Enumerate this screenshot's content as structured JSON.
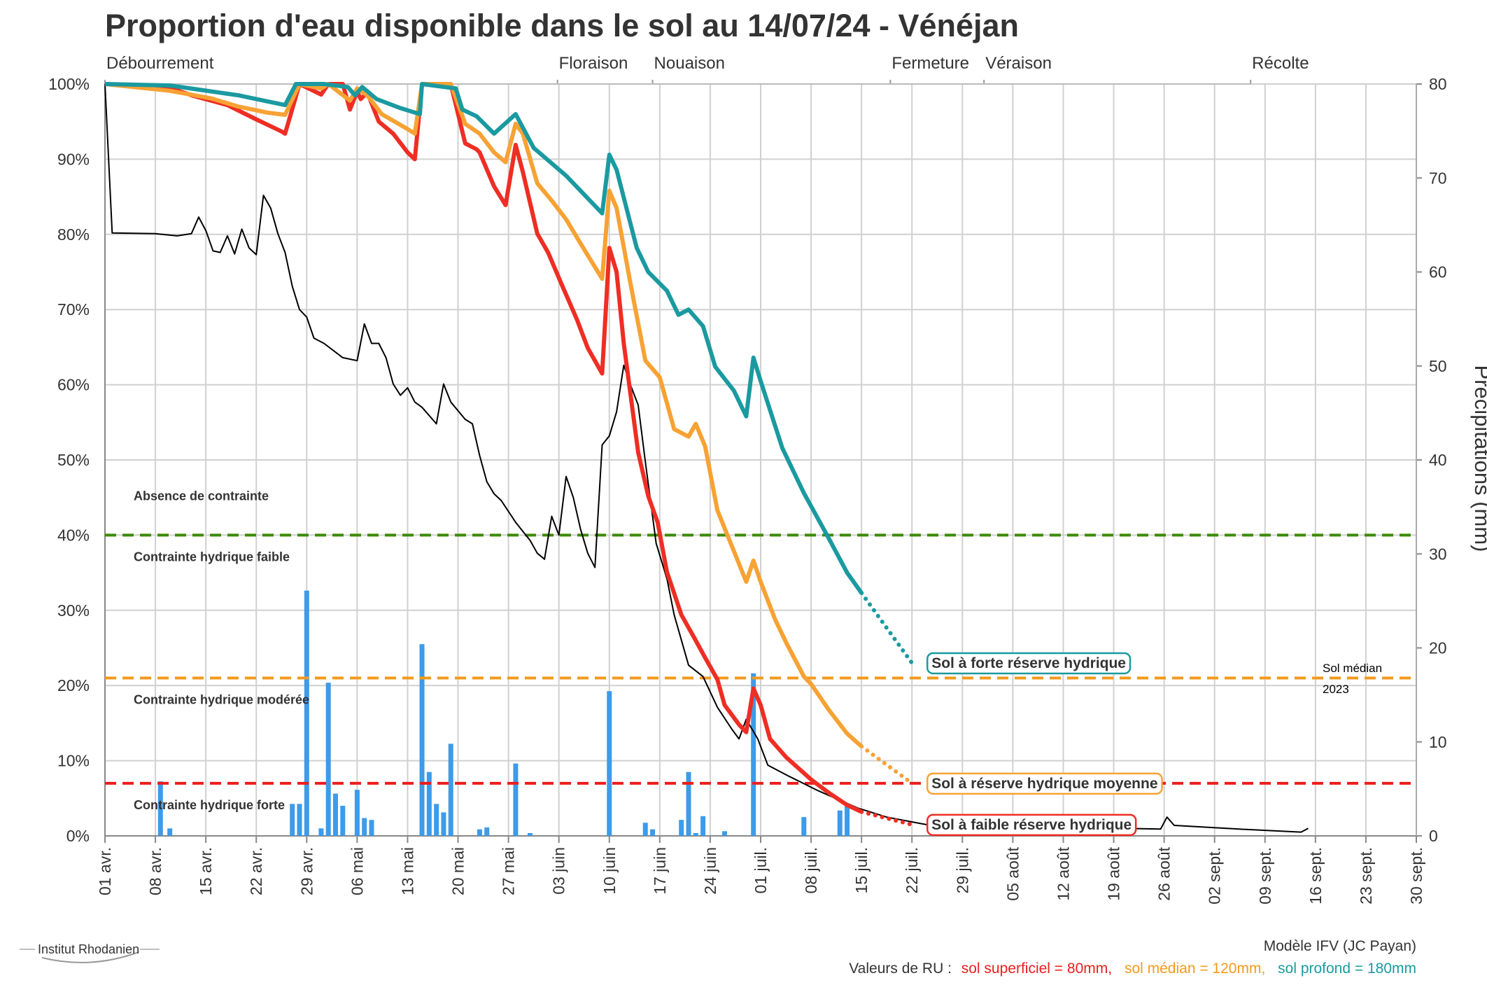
{
  "chart_data": {
    "type": "line",
    "title": "Proportion d'eau disponible dans le sol au 14/07/24 - Vénéjan",
    "xlim": [
      0,
      182
    ],
    "xticks": [
      {
        "value": 0,
        "label": "01 avr."
      },
      {
        "value": 7,
        "label": "08 avr."
      },
      {
        "value": 14,
        "label": "15 avr."
      },
      {
        "value": 21,
        "label": "22 avr."
      },
      {
        "value": 28,
        "label": "29 avr."
      },
      {
        "value": 35,
        "label": "06 mai"
      },
      {
        "value": 42,
        "label": "13 mai"
      },
      {
        "value": 49,
        "label": "20 mai"
      },
      {
        "value": 56,
        "label": "27 mai"
      },
      {
        "value": 63,
        "label": "03 juin"
      },
      {
        "value": 70,
        "label": "10 juin"
      },
      {
        "value": 77,
        "label": "17 juin"
      },
      {
        "value": 84,
        "label": "24 juin"
      },
      {
        "value": 91,
        "label": "01 juil."
      },
      {
        "value": 98,
        "label": "08 juil."
      },
      {
        "value": 105,
        "label": "15 juil."
      },
      {
        "value": 112,
        "label": "22 juil."
      },
      {
        "value": 119,
        "label": "29 juil."
      },
      {
        "value": 126,
        "label": "05 août"
      },
      {
        "value": 133,
        "label": "12 août"
      },
      {
        "value": 140,
        "label": "19 août"
      },
      {
        "value": 147,
        "label": "26 août"
      },
      {
        "value": 154,
        "label": "02 sept."
      },
      {
        "value": 161,
        "label": "09 sept."
      },
      {
        "value": 168,
        "label": "16 sept."
      },
      {
        "value": 175,
        "label": "23 sept."
      },
      {
        "value": 182,
        "label": "30 sept."
      }
    ],
    "ylim": [
      0,
      100
    ],
    "yticks": [
      {
        "value": 0,
        "label": "0%"
      },
      {
        "value": 10,
        "label": "10%"
      },
      {
        "value": 20,
        "label": "20%"
      },
      {
        "value": 30,
        "label": "30%"
      },
      {
        "value": 40,
        "label": "40%"
      },
      {
        "value": 50,
        "label": "50%"
      },
      {
        "value": 60,
        "label": "60%"
      },
      {
        "value": 70,
        "label": "70%"
      },
      {
        "value": 80,
        "label": "80%"
      },
      {
        "value": 90,
        "label": "90%"
      },
      {
        "value": 100,
        "label": "100%"
      }
    ],
    "y2lim": [
      0,
      80
    ],
    "y2ticks": [
      0,
      10,
      20,
      30,
      40,
      50,
      60,
      70,
      80
    ],
    "y2_label": "Précipitations (mm)",
    "grid": true,
    "phases": [
      {
        "label": "Débourrement",
        "x": 0
      },
      {
        "label": "Floraison",
        "x": 62.8
      },
      {
        "label": "Nouaison",
        "x": 76
      },
      {
        "label": "Fermeture",
        "x": 109
      },
      {
        "label": "Véraison",
        "x": 122
      },
      {
        "label": "Récolte",
        "x": 159
      }
    ],
    "above_label": {
      "text": "Absence de contrainte",
      "color": "#1a9aa0"
    },
    "thresholds": [
      {
        "value": 40,
        "color": "#3c8a00",
        "label": "Contrainte hydrique faible"
      },
      {
        "value": 21,
        "color": "#f39a1c",
        "label": "Contrainte hydrique modérée"
      },
      {
        "value": 7,
        "color": "#ee1c1c",
        "label": "Contrainte hydrique forte"
      }
    ],
    "series": [
      {
        "name": "Sol à faible réserve hydrique",
        "color": "#ee2e24",
        "x": [
          0,
          9,
          12,
          17,
          21,
          24.5,
          25,
          27,
          30,
          31,
          33,
          34,
          35,
          35.5,
          36.4,
          38,
          40,
          42,
          43,
          44,
          48,
          50,
          51.6,
          52,
          54,
          55.6,
          57,
          58,
          60,
          61.5,
          63.5,
          65.5,
          67,
          69,
          70,
          71,
          72,
          74,
          75.4,
          76.7,
          78,
          80,
          81.7,
          83.3,
          85,
          86,
          88,
          89,
          90,
          91,
          92.3,
          94.6,
          98,
          100.5,
          103,
          105
        ],
        "values": [
          100,
          99.5,
          98.5,
          97.2,
          95.3,
          93.7,
          93.4,
          100,
          98.6,
          100,
          100,
          96.6,
          99,
          98,
          98.9,
          95,
          93.4,
          90.9,
          90,
          100,
          100,
          92.1,
          91.3,
          90.9,
          86.4,
          83.9,
          91.9,
          88.3,
          80.1,
          77.6,
          73.1,
          68.7,
          64.9,
          61.5,
          78.2,
          75,
          65.5,
          51,
          45.2,
          41.7,
          35.1,
          29.4,
          26.5,
          23.7,
          20.8,
          17.4,
          14.8,
          13.8,
          19.6,
          17.4,
          12.9,
          10.4,
          7.5,
          5.7,
          4.1,
          3.2
        ],
        "forecast": {
          "x": [
            105,
            112
          ],
          "values": [
            3.2,
            1.5
          ]
        }
      },
      {
        "name": "Sol à réserve hydrique moyenne",
        "color": "#f7a234",
        "x": [
          0,
          9,
          14.7,
          18.5,
          22.5,
          25,
          27,
          30,
          31,
          34,
          35,
          36.4,
          38.4,
          42,
          43,
          44,
          48,
          50,
          52,
          54,
          55.6,
          57,
          58,
          60,
          62,
          64,
          66,
          69,
          70,
          71,
          73,
          75,
          77,
          79,
          81,
          82,
          83.3,
          85,
          86.6,
          89,
          90,
          91,
          93,
          94.6,
          97,
          98,
          100.5,
          103,
          105
        ],
        "values": [
          100,
          99.1,
          98.1,
          97,
          96.2,
          95.9,
          100,
          99.4,
          100,
          97.8,
          99.4,
          98.5,
          96,
          94,
          93.4,
          100,
          100,
          94.7,
          93.4,
          90.9,
          89.6,
          94.7,
          93.4,
          86.8,
          84.5,
          82,
          78.8,
          74.1,
          85.8,
          83.5,
          73.1,
          63.2,
          61,
          54.1,
          53.1,
          54.8,
          51.8,
          43.3,
          39.5,
          33.8,
          36.6,
          33.8,
          28.8,
          25.6,
          21.2,
          20.2,
          16.7,
          13.6,
          11.9
        ],
        "forecast": {
          "x": [
            105,
            112
          ],
          "values": [
            11.9,
            7
          ]
        }
      },
      {
        "name": "Sol à forte réserve hydrique",
        "color": "#1a9aa0",
        "x": [
          0,
          9,
          18.5,
          25,
          26.5,
          30.4,
          33.7,
          34.7,
          35.7,
          37.7,
          41,
          43.7,
          44,
          48.7,
          49.6,
          51.6,
          54,
          57,
          59.5,
          64,
          69,
          70,
          71,
          73.8,
          75.4,
          78,
          79.6,
          81,
          83,
          84.7,
          87.3,
          89,
          90,
          91,
          94,
          97,
          100.5,
          103,
          105
        ],
        "values": [
          100,
          99.8,
          98.5,
          97.2,
          100,
          100,
          99.6,
          98.5,
          99.6,
          98,
          96.8,
          96,
          100,
          99.4,
          96.6,
          95.7,
          93.4,
          96,
          91.5,
          87.8,
          82.8,
          90.6,
          88.6,
          78.2,
          75,
          72.5,
          69.3,
          70,
          67.8,
          62.4,
          59.2,
          55.8,
          63.6,
          60.5,
          51.6,
          45.6,
          39.5,
          35,
          32.3
        ],
        "forecast": {
          "x": [
            105,
            112
          ],
          "values": [
            32.3,
            23
          ]
        }
      },
      {
        "name": "Sol médian 2023",
        "color": "#000000",
        "x": [
          0,
          1,
          7,
          10,
          12,
          13,
          14,
          15,
          16,
          17,
          18,
          19,
          20,
          21,
          22,
          23,
          24,
          25,
          26,
          27,
          28,
          29,
          30.4,
          33,
          35,
          36,
          37,
          38,
          39,
          40,
          41,
          42,
          43,
          44,
          46,
          47,
          48,
          50,
          51,
          52,
          53,
          54,
          55,
          57,
          59,
          60,
          61,
          62,
          63,
          64,
          65,
          66,
          67,
          68,
          69,
          70,
          71,
          72,
          73,
          74,
          75,
          76.5,
          78,
          79,
          81,
          83,
          85,
          87,
          88,
          89,
          90.6,
          92,
          95,
          99,
          104.5,
          108.5,
          114,
          146.5,
          147.4,
          148.4,
          157.4,
          166,
          167
        ],
        "values": [
          100,
          80.2,
          80.1,
          79.8,
          80.1,
          82.3,
          80.5,
          77.8,
          77.6,
          79.8,
          77.4,
          80.7,
          78.2,
          77.3,
          85.2,
          83.5,
          80.1,
          77.6,
          73.1,
          70,
          69,
          66.2,
          65.5,
          63.6,
          63.2,
          68.1,
          65.5,
          65.5,
          63.6,
          60.1,
          58.6,
          59.6,
          57.7,
          57,
          54.8,
          60.1,
          57.7,
          55.4,
          54.8,
          50.6,
          47.1,
          45.5,
          44.6,
          41.7,
          39.3,
          37.6,
          36.8,
          42.5,
          40,
          47.8,
          45,
          40.8,
          37.6,
          35.7,
          52,
          53.2,
          56.4,
          62.6,
          59.8,
          57.3,
          49.7,
          38.9,
          34.2,
          29.4,
          22.7,
          21.2,
          17.1,
          14.2,
          12.9,
          15.5,
          12.9,
          9.4,
          7.9,
          6,
          3.7,
          2.5,
          1.5,
          0.9,
          2.5,
          1.4,
          0.9,
          0.5,
          1
        ]
      },
      {
        "type": "bar",
        "axis": "y2",
        "color": "#3d9be9",
        "x": [
          7.7,
          9,
          26,
          27,
          28,
          30,
          31,
          32,
          33,
          35,
          36,
          37,
          44,
          45,
          46,
          47,
          48,
          52,
          53,
          57,
          59,
          70,
          75,
          76,
          80,
          81,
          82,
          83,
          86,
          90,
          97,
          102,
          103
        ],
        "values": [
          5.8,
          0.8,
          3.4,
          3.4,
          26.1,
          0.8,
          16.3,
          4.5,
          3.2,
          4.9,
          1.9,
          1.7,
          20.4,
          6.8,
          3.4,
          2.5,
          9.8,
          0.7,
          0.9,
          7.7,
          0.3,
          15.4,
          1.4,
          0.7,
          1.7,
          6.8,
          0.3,
          2.1,
          0.5,
          17.3,
          2,
          2.7,
          3.4
        ]
      }
    ]
  },
  "footer": {
    "model": "Modèle IFV (JC Payan)",
    "ru_label": "Valeurs de RU :",
    "ru": [
      {
        "text": "sol superficiel = 80mm,",
        "color": "#ee1c1c"
      },
      {
        "text": "sol médian = 120mm,",
        "color": "#f39a1c"
      },
      {
        "text": "sol profond = 180mm",
        "color": "#1a9aa0"
      }
    ]
  },
  "logo": "Institut Rhodanien"
}
